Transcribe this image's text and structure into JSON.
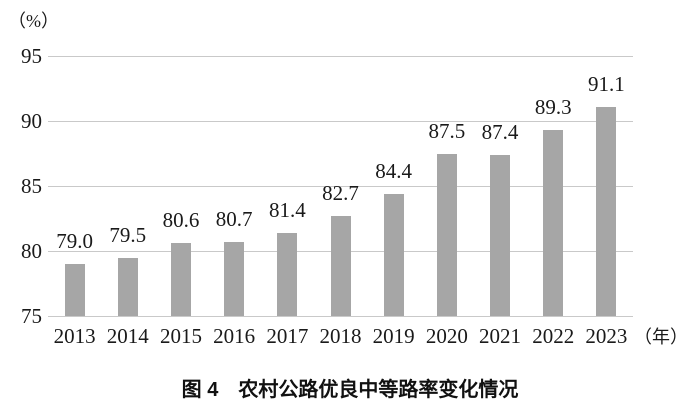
{
  "chart": {
    "y_unit_label": "（%）",
    "x_unit_label": "（年）"
  },
  "caption": "图 4　农村公路优良中等路率变化情况",
  "colors": {
    "bar": "#a6a6a6",
    "gridline": "#c9c9c9",
    "text": "#1a1a1a",
    "background": "#ffffff"
  },
  "chart_data": {
    "type": "bar",
    "title": "图 4　农村公路优良中等路率变化情况",
    "categories": [
      "2013",
      "2014",
      "2015",
      "2016",
      "2017",
      "2018",
      "2019",
      "2020",
      "2021",
      "2022",
      "2023"
    ],
    "values": [
      79.0,
      79.5,
      80.6,
      80.7,
      81.4,
      82.7,
      84.4,
      87.5,
      87.4,
      89.3,
      91.1
    ],
    "value_label_decimals": 1,
    "xlabel": "年",
    "ylabel": "%",
    "ylim": [
      75,
      95
    ],
    "yticks": [
      95,
      90,
      85,
      80,
      75
    ],
    "grid": true,
    "legend_position": "none",
    "bar_color": "#a6a6a6",
    "gridline_color": "#c9c9c9"
  }
}
